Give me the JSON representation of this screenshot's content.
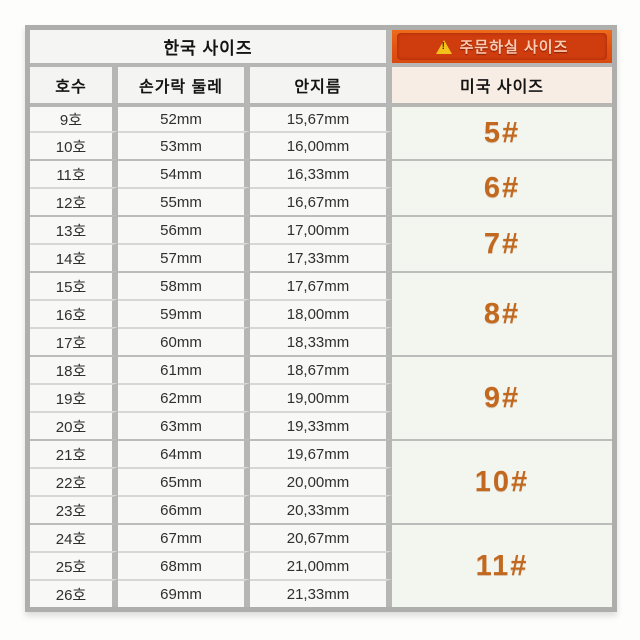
{
  "table": {
    "korean_header": "한국 사이즈",
    "order_banner_label": "주문하실 사이즈",
    "warning_icon": "warning-triangle-icon",
    "columns": [
      "호수",
      "손가락 둘레",
      "안지름"
    ],
    "us_column_header": "미국 사이즈",
    "rows": [
      {
        "ho": "9호",
        "circumference": "52mm",
        "diameter": "15,67mm"
      },
      {
        "ho": "10호",
        "circumference": "53mm",
        "diameter": "16,00mm"
      },
      {
        "ho": "11호",
        "circumference": "54mm",
        "diameter": "16,33mm"
      },
      {
        "ho": "12호",
        "circumference": "55mm",
        "diameter": "16,67mm"
      },
      {
        "ho": "13호",
        "circumference": "56mm",
        "diameter": "17,00mm"
      },
      {
        "ho": "14호",
        "circumference": "57mm",
        "diameter": "17,33mm"
      },
      {
        "ho": "15호",
        "circumference": "58mm",
        "diameter": "17,67mm"
      },
      {
        "ho": "16호",
        "circumference": "59mm",
        "diameter": "18,00mm"
      },
      {
        "ho": "17호",
        "circumference": "60mm",
        "diameter": "18,33mm"
      },
      {
        "ho": "18호",
        "circumference": "61mm",
        "diameter": "18,67mm"
      },
      {
        "ho": "19호",
        "circumference": "62mm",
        "diameter": "19,00mm"
      },
      {
        "ho": "20호",
        "circumference": "63mm",
        "diameter": "19,33mm"
      },
      {
        "ho": "21호",
        "circumference": "64mm",
        "diameter": "19,67mm"
      },
      {
        "ho": "22호",
        "circumference": "65mm",
        "diameter": "20,00mm"
      },
      {
        "ho": "23호",
        "circumference": "66mm",
        "diameter": "20,33mm"
      },
      {
        "ho": "24호",
        "circumference": "67mm",
        "diameter": "20,67mm"
      },
      {
        "ho": "25호",
        "circumference": "68mm",
        "diameter": "21,00mm"
      },
      {
        "ho": "26호",
        "circumference": "69mm",
        "diameter": "21,33mm"
      }
    ],
    "us_groups": [
      {
        "label": "5#",
        "span": 2
      },
      {
        "label": "6#",
        "span": 2
      },
      {
        "label": "7#",
        "span": 2
      },
      {
        "label": "8#",
        "span": 3
      },
      {
        "label": "9#",
        "span": 3
      },
      {
        "label": "10#",
        "span": 3
      },
      {
        "label": "11#",
        "span": 3
      }
    ]
  },
  "colors": {
    "banner_orange": "#e25312",
    "banner_inner_red": "#cf3c0e",
    "banner_text": "#ffccb2",
    "warning_yellow": "#f2c11c",
    "us_size_text": "#c2691f",
    "us_column_bg": "#f3f6ef",
    "us_header_bg": "#f7ede5",
    "table_border_gray": "#aeaeac",
    "cell_bg": "#f8f8f6",
    "data_text": "#2f2f2f"
  },
  "chart_data": {
    "type": "table",
    "title": "한국 사이즈 / 미국 사이즈 ring size conversion",
    "columns": [
      "호수",
      "손가락 둘레",
      "안지름",
      "미국 사이즈"
    ],
    "rows": [
      [
        "9호",
        "52mm",
        "15,67mm",
        "5#"
      ],
      [
        "10호",
        "53mm",
        "16,00mm",
        "5#"
      ],
      [
        "11호",
        "54mm",
        "16,33mm",
        "6#"
      ],
      [
        "12호",
        "55mm",
        "16,67mm",
        "6#"
      ],
      [
        "13호",
        "56mm",
        "17,00mm",
        "7#"
      ],
      [
        "14호",
        "57mm",
        "17,33mm",
        "7#"
      ],
      [
        "15호",
        "58mm",
        "17,67mm",
        "8#"
      ],
      [
        "16호",
        "59mm",
        "18,00mm",
        "8#"
      ],
      [
        "17호",
        "60mm",
        "18,33mm",
        "8#"
      ],
      [
        "18호",
        "61mm",
        "18,67mm",
        "9#"
      ],
      [
        "19호",
        "62mm",
        "19,00mm",
        "9#"
      ],
      [
        "20호",
        "63mm",
        "19,33mm",
        "9#"
      ],
      [
        "21호",
        "64mm",
        "19,67mm",
        "10#"
      ],
      [
        "22호",
        "65mm",
        "20,00mm",
        "10#"
      ],
      [
        "23호",
        "66mm",
        "20,33mm",
        "10#"
      ],
      [
        "24호",
        "67mm",
        "20,67mm",
        "11#"
      ],
      [
        "25호",
        "68mm",
        "21,00mm",
        "11#"
      ],
      [
        "26호",
        "69mm",
        "21,33mm",
        "11#"
      ]
    ]
  }
}
